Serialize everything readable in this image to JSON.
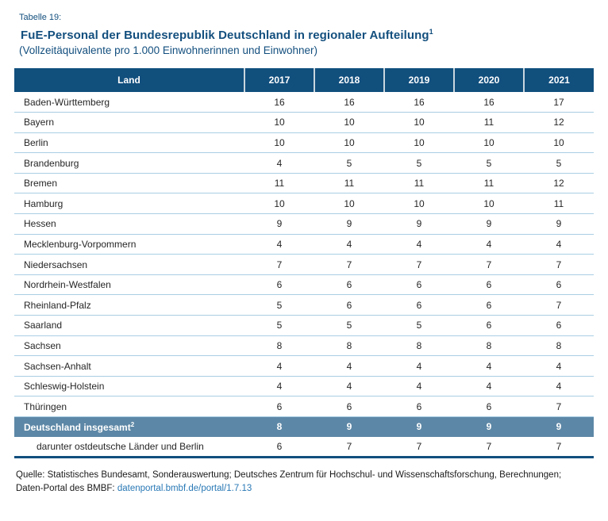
{
  "header": {
    "table_label": "Tabelle 19:",
    "title": "FuE-Personal der Bundesrepublik Deutschland in regionaler Aufteilung",
    "title_footnote": "1",
    "subtitle": "(Vollzeitäquivalente pro 1.000 Einwohnerinnen und Einwohner)"
  },
  "colors": {
    "header_blue": "#114F7D",
    "highlight_blue": "#5D87A6",
    "row_separator": "#A9CEE4",
    "title_blue": "#134F7E",
    "link_blue": "#2878B5"
  },
  "chart_data": {
    "type": "table",
    "columns": [
      "Land",
      "2017",
      "2018",
      "2019",
      "2020",
      "2021"
    ],
    "rows": [
      {
        "land": "Baden-Württemberg",
        "values": [
          16,
          16,
          16,
          16,
          17
        ]
      },
      {
        "land": "Bayern",
        "values": [
          10,
          10,
          10,
          11,
          12
        ]
      },
      {
        "land": "Berlin",
        "values": [
          10,
          10,
          10,
          10,
          10
        ]
      },
      {
        "land": "Brandenburg",
        "values": [
          4,
          5,
          5,
          5,
          5
        ]
      },
      {
        "land": "Bremen",
        "values": [
          11,
          11,
          11,
          11,
          12
        ]
      },
      {
        "land": "Hamburg",
        "values": [
          10,
          10,
          10,
          10,
          11
        ]
      },
      {
        "land": "Hessen",
        "values": [
          9,
          9,
          9,
          9,
          9
        ]
      },
      {
        "land": "Mecklenburg-Vorpommern",
        "values": [
          4,
          4,
          4,
          4,
          4
        ]
      },
      {
        "land": "Niedersachsen",
        "values": [
          7,
          7,
          7,
          7,
          7
        ]
      },
      {
        "land": "Nordrhein-Westfalen",
        "values": [
          6,
          6,
          6,
          6,
          6
        ]
      },
      {
        "land": "Rheinland-Pfalz",
        "values": [
          5,
          6,
          6,
          6,
          7
        ]
      },
      {
        "land": "Saarland",
        "values": [
          5,
          5,
          5,
          6,
          6
        ]
      },
      {
        "land": "Sachsen",
        "values": [
          8,
          8,
          8,
          8,
          8
        ]
      },
      {
        "land": "Sachsen-Anhalt",
        "values": [
          4,
          4,
          4,
          4,
          4
        ]
      },
      {
        "land": "Schleswig-Holstein",
        "values": [
          4,
          4,
          4,
          4,
          4
        ]
      },
      {
        "land": "Thüringen",
        "values": [
          6,
          6,
          6,
          6,
          7
        ]
      },
      {
        "land": "Deutschland insgesamt",
        "footnote": "2",
        "highlight": true,
        "values": [
          8,
          9,
          9,
          9,
          9
        ]
      },
      {
        "land": "darunter ostdeutsche Länder und Berlin",
        "indent": true,
        "values": [
          6,
          7,
          7,
          7,
          7
        ]
      }
    ]
  },
  "footer": {
    "source_line1": "Quelle: Statistisches Bundesamt, Sonderauswertung; Deutsches Zentrum für Hochschul- und Wissenschaftsforschung, Berechnungen;",
    "source_line2_prefix": "Daten-Portal des BMBF: ",
    "source_link": "datenportal.bmbf.de/portal/1.7.13"
  }
}
